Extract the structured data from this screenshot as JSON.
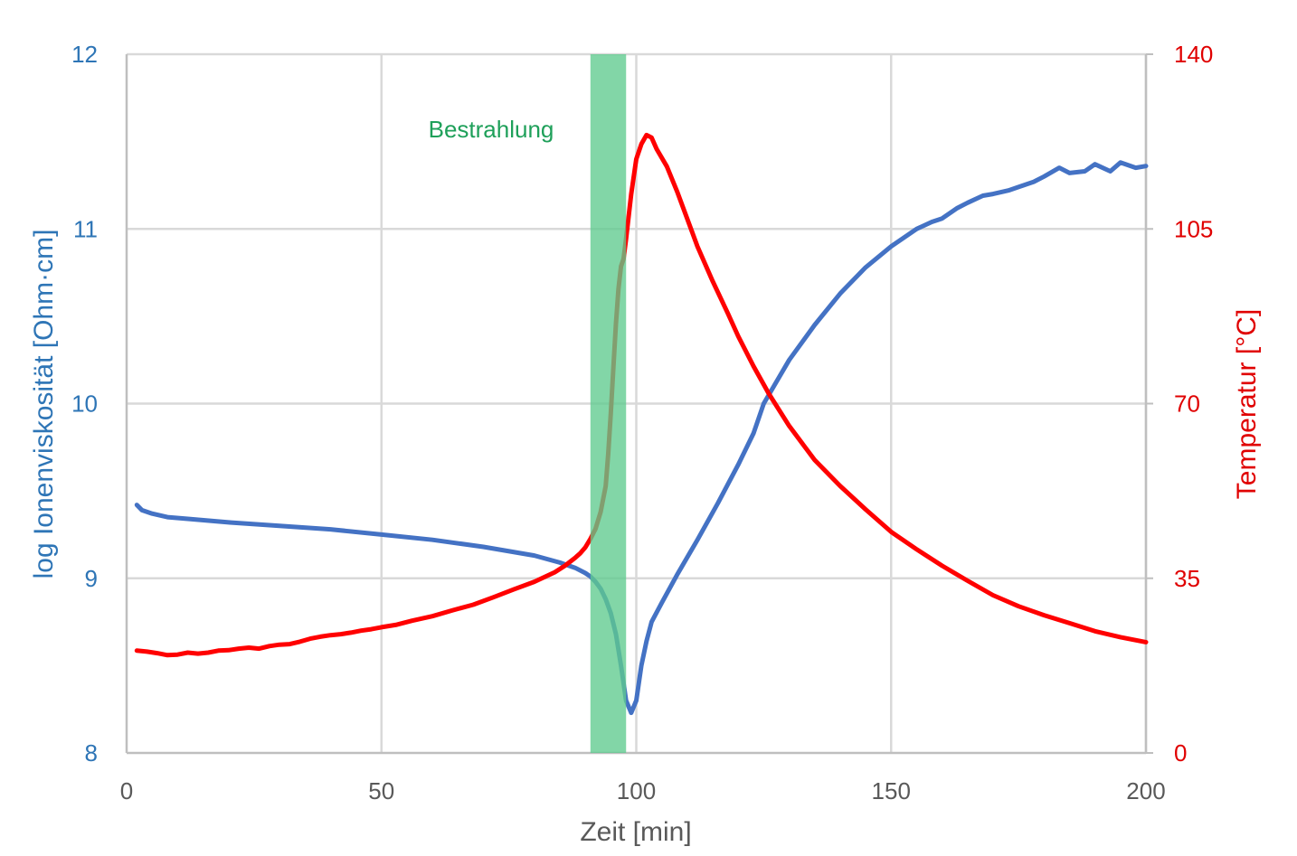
{
  "chart_data": {
    "type": "line",
    "title": "",
    "xlabel": "Zeit [min]",
    "ylabel_left": "log Ionenviskosität [Ohm·cm]",
    "ylabel_right": "Temperatur [°C]",
    "xlim": [
      0,
      200
    ],
    "ylim_left": [
      8,
      12
    ],
    "ylim_right": [
      0,
      140
    ],
    "x_ticks": [
      "0",
      "50",
      "100",
      "150",
      "200"
    ],
    "y_left_ticks": [
      "8",
      "9",
      "10",
      "11",
      "12"
    ],
    "y_right_ticks": [
      "0",
      "35",
      "70",
      "105",
      "140"
    ],
    "grid": true,
    "legend": "none",
    "colors": {
      "left_axis": "#2E75B6",
      "right_axis": "#E00000",
      "viscosity_line": "#4472C4",
      "temperature_line": "#FF0000",
      "band": "#5FCB8E",
      "band_label": "#1FA05A",
      "grid": "#D9D9D9",
      "x_axis_text": "#595959"
    },
    "annotation": {
      "label": "Bestrahlung",
      "x_range": [
        91,
        98
      ]
    },
    "series": [
      {
        "axis": "left",
        "x": [
          2,
          3,
          5,
          8,
          12,
          20,
          30,
          40,
          50,
          60,
          70,
          80,
          85,
          88,
          90,
          91,
          92,
          93,
          94,
          95,
          96,
          97,
          98,
          99,
          100,
          101,
          102,
          103,
          105,
          108,
          112,
          116,
          120,
          123,
          125,
          127,
          130,
          135,
          140,
          145,
          150,
          155,
          158,
          160,
          163,
          165,
          168,
          170,
          173,
          175,
          178,
          180,
          183,
          185,
          188,
          190,
          193,
          195,
          198,
          200
        ],
        "values": [
          9.42,
          9.39,
          9.37,
          9.35,
          9.34,
          9.32,
          9.3,
          9.28,
          9.25,
          9.22,
          9.18,
          9.13,
          9.09,
          9.06,
          9.03,
          9.01,
          8.98,
          8.94,
          8.88,
          8.8,
          8.68,
          8.5,
          8.3,
          8.23,
          8.3,
          8.5,
          8.64,
          8.75,
          8.86,
          9.02,
          9.22,
          9.43,
          9.65,
          9.83,
          10.0,
          10.1,
          10.25,
          10.45,
          10.63,
          10.78,
          10.9,
          11.0,
          11.04,
          11.06,
          11.12,
          11.15,
          11.19,
          11.2,
          11.22,
          11.24,
          11.27,
          11.3,
          11.35,
          11.32,
          11.33,
          11.37,
          11.33,
          11.38,
          11.35,
          11.36
        ]
      },
      {
        "axis": "right",
        "x": [
          2,
          4,
          6,
          8,
          10,
          12,
          14,
          16,
          18,
          20,
          22,
          24,
          26,
          28,
          30,
          32,
          34,
          36,
          38,
          40,
          42,
          44,
          46,
          48,
          50,
          53,
          56,
          60,
          64,
          68,
          72,
          76,
          80,
          84,
          86,
          88,
          89,
          90,
          91,
          92,
          93,
          94,
          94.5,
          95,
          95.5,
          96,
          96.5,
          97,
          97.5,
          98,
          99,
          100,
          101,
          102,
          103,
          104,
          106,
          108,
          110,
          112,
          115,
          118,
          120,
          123,
          126,
          130,
          135,
          140,
          145,
          150,
          155,
          160,
          165,
          170,
          175,
          180,
          185,
          190,
          195,
          200
        ],
        "values": [
          20.5,
          20.3,
          20.0,
          19.6,
          19.7,
          20.1,
          19.9,
          20.1,
          20.5,
          20.6,
          20.9,
          21.1,
          20.9,
          21.4,
          21.7,
          21.8,
          22.3,
          22.9,
          23.3,
          23.6,
          23.8,
          24.1,
          24.5,
          24.8,
          25.2,
          25.7,
          26.5,
          27.4,
          28.6,
          29.7,
          31.2,
          32.8,
          34.3,
          36.2,
          37.5,
          39.1,
          40.0,
          41.2,
          42.9,
          44.9,
          48.3,
          53.5,
          60.0,
          68.0,
          77.0,
          86.0,
          93.0,
          97.5,
          99.0,
          103.0,
          112.0,
          119.0,
          122.0,
          123.8,
          123.3,
          121.0,
          117.5,
          112.5,
          107.0,
          101.5,
          94.5,
          88.0,
          83.5,
          77.5,
          72.0,
          65.5,
          58.7,
          53.5,
          48.8,
          44.3,
          40.8,
          37.5,
          34.5,
          31.6,
          29.4,
          27.6,
          26.0,
          24.4,
          23.2,
          22.2
        ]
      }
    ]
  }
}
